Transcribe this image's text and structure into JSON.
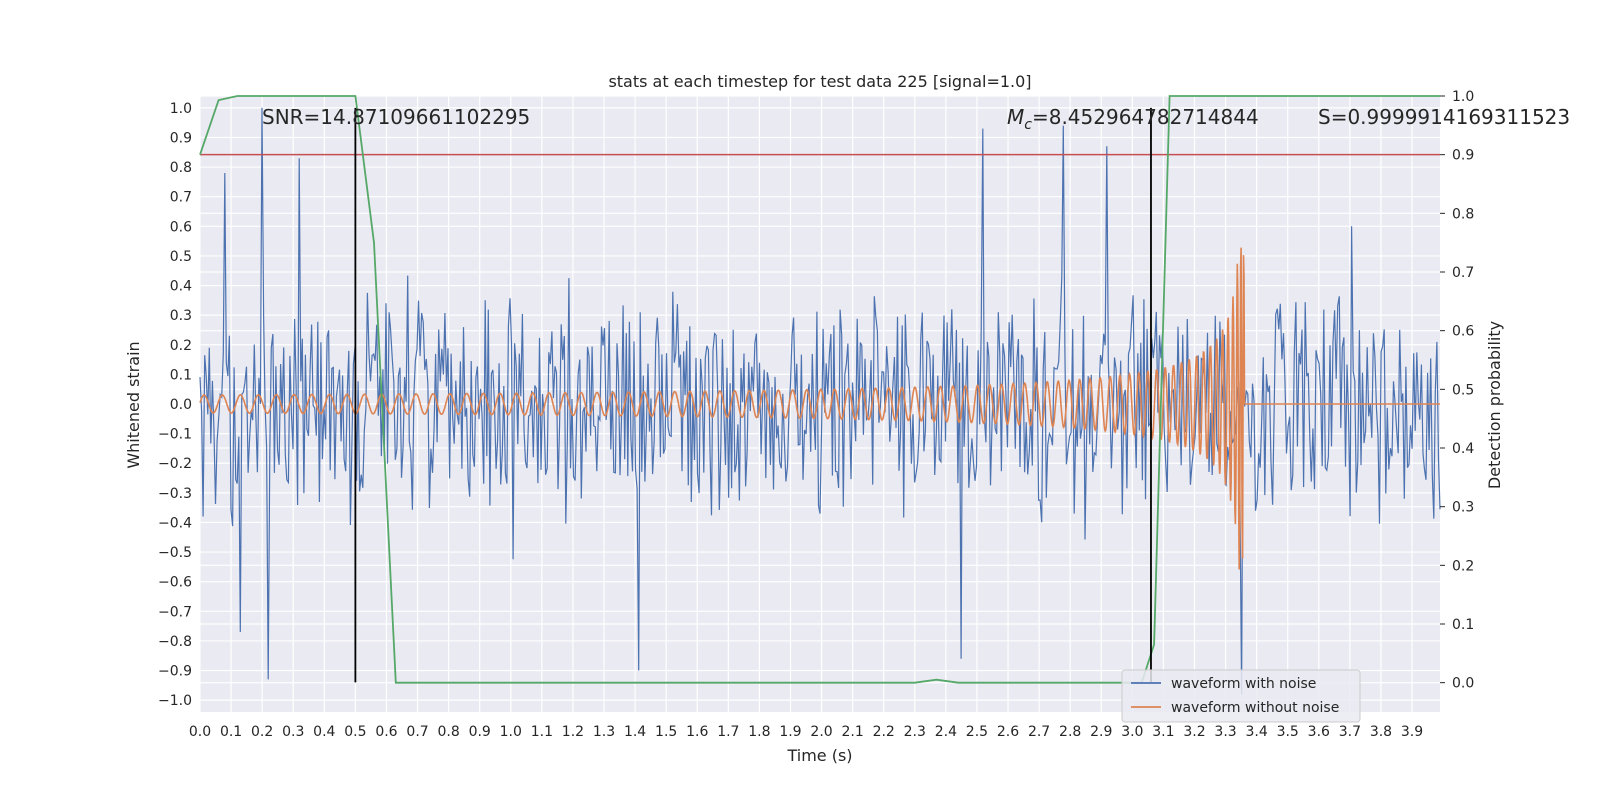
{
  "chart_data": {
    "type": "line",
    "title": "stats at each timestep for test data 225 [signal=1.0]",
    "xlabel": "Time (s)",
    "ylabel": "Whitened strain",
    "y2label": "Detection probability",
    "xlim": [
      0.0,
      3.99
    ],
    "ylim": [
      -1.04,
      1.04
    ],
    "y2lim": [
      -0.05,
      1.0
    ],
    "x_ticks": [
      "0.0",
      "0.1",
      "0.2",
      "0.3",
      "0.4",
      "0.5",
      "0.6",
      "0.7",
      "0.8",
      "0.9",
      "1.0",
      "1.1",
      "1.2",
      "1.3",
      "1.4",
      "1.5",
      "1.6",
      "1.7",
      "1.8",
      "1.9",
      "2.0",
      "2.1",
      "2.2",
      "2.3",
      "2.4",
      "2.5",
      "2.6",
      "2.7",
      "2.8",
      "2.9",
      "3.0",
      "3.1",
      "3.2",
      "3.3",
      "3.4",
      "3.5",
      "3.6",
      "3.7",
      "3.8",
      "3.9"
    ],
    "y_ticks": [
      "1.0",
      "0.9",
      "0.8",
      "0.7",
      "0.6",
      "0.5",
      "0.4",
      "0.3",
      "0.2",
      "0.1",
      "0.0",
      "−0.1",
      "−0.2",
      "−0.3",
      "−0.4",
      "−0.5",
      "−0.6",
      "−0.7",
      "−0.8",
      "−0.9",
      "−1.0"
    ],
    "y2_ticks": [
      "1.0",
      "0.9",
      "0.8",
      "0.7",
      "0.6",
      "0.5",
      "0.4",
      "0.3",
      "0.2",
      "0.1",
      "0.0"
    ],
    "series": [
      {
        "name": "waveform with noise",
        "color": "#4c72b0",
        "description": "dense noisy strain, amplitude roughly ±0.45 with spikes up to ±1.0",
        "samples": 800,
        "noise_amplitude": 0.42,
        "spikes": [
          [
            0.2,
            1.0
          ],
          [
            0.22,
            -0.93
          ],
          [
            0.32,
            0.83
          ],
          [
            0.08,
            0.78
          ],
          [
            0.13,
            -0.77
          ],
          [
            2.52,
            0.93
          ],
          [
            2.78,
            0.94
          ],
          [
            2.92,
            0.87
          ],
          [
            3.35,
            -0.98
          ],
          [
            1.41,
            -0.9
          ],
          [
            2.45,
            -0.86
          ]
        ]
      },
      {
        "name": "waveform without noise",
        "color": "#dd8452",
        "description": "chirp: amplitude ~0.03 growing to 0.56 near t=3.36 s, then zero",
        "start_amplitude": 0.03,
        "peak_amplitude": 0.56,
        "merger_time": 3.36,
        "start_frequency_hz": 17,
        "merger_frequency_hz": 120
      },
      {
        "name": "detection probability",
        "color": "#55a868",
        "axis": "right",
        "x": [
          0.0,
          0.06,
          0.12,
          0.5,
          0.56,
          0.63,
          2.3,
          2.37,
          2.44,
          3.03,
          3.07,
          3.12,
          3.99
        ],
        "values": [
          0.9,
          0.993,
          1.0,
          1.0,
          0.75,
          0.0,
          0.0,
          0.005,
          0.0,
          0.0,
          0.065,
          1.0,
          1.0
        ]
      }
    ],
    "threshold": {
      "value": 0.9,
      "axis": "right",
      "color": "#c44e52"
    },
    "vlines": [
      {
        "x": 0.5,
        "y_from": -0.94,
        "y_to": 1.0,
        "color": "#000000"
      },
      {
        "x": 3.06,
        "y_from": -0.94,
        "y_to": 1.0,
        "color": "#000000"
      }
    ],
    "annotations": {
      "snr": "SNR=14.87109661102295",
      "mc_symbol": "M",
      "mc_sub": "c",
      "mc_value": "=8.452964782714844",
      "s": "S=0.9999914169311523"
    },
    "legend": {
      "location": "lower-right",
      "entries": [
        "waveform with noise",
        "waveform without noise"
      ]
    }
  }
}
